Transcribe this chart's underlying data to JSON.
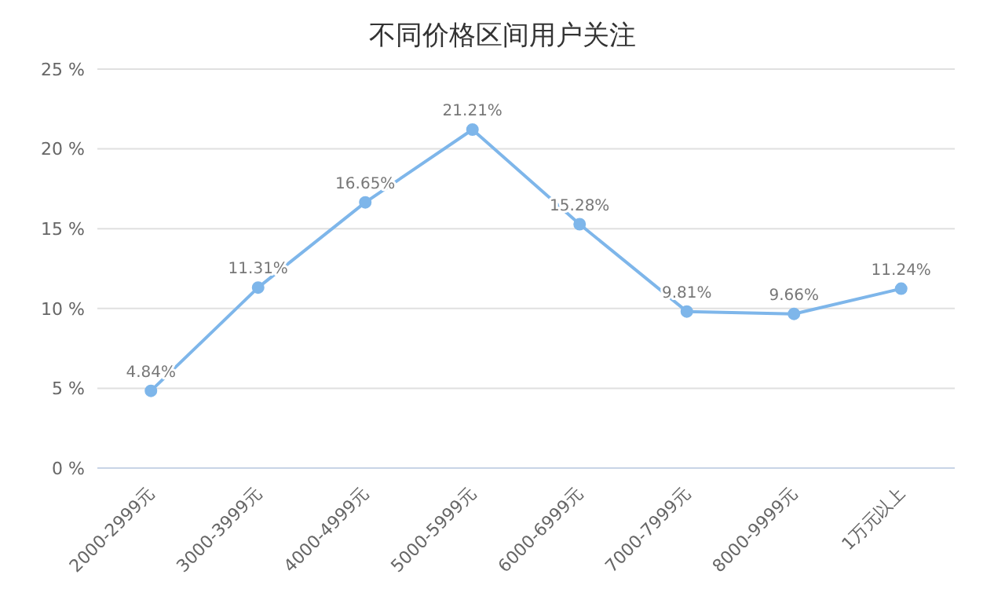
{
  "chart_data": {
    "type": "line",
    "title": "不同价格区间用户关注",
    "categories": [
      "2000-2999元",
      "3000-3999元",
      "4000-4999元",
      "5000-5999元",
      "6000-6999元",
      "7000-7999元",
      "8000-9999元",
      "1万元以上"
    ],
    "series": [
      {
        "color": "#7eb6ea",
        "values": [
          4.84,
          11.31,
          16.65,
          21.21,
          15.28,
          9.81,
          9.66,
          11.24
        ],
        "value_labels": [
          "4.84%",
          "11.31%",
          "16.65%",
          "21.21%",
          "15.28%",
          "9.81%",
          "9.66%",
          "11.24%"
        ]
      }
    ],
    "ylim": [
      0,
      25
    ],
    "yticks": [
      {
        "value": 0,
        "label": "0 %"
      },
      {
        "value": 5,
        "label": "5 %"
      },
      {
        "value": 10,
        "label": "10 %"
      },
      {
        "value": 15,
        "label": "15 %"
      },
      {
        "value": 20,
        "label": "20 %"
      },
      {
        "value": 25,
        "label": "25 %"
      }
    ],
    "grid": "y",
    "marker": "circle",
    "line_style": "solid"
  }
}
